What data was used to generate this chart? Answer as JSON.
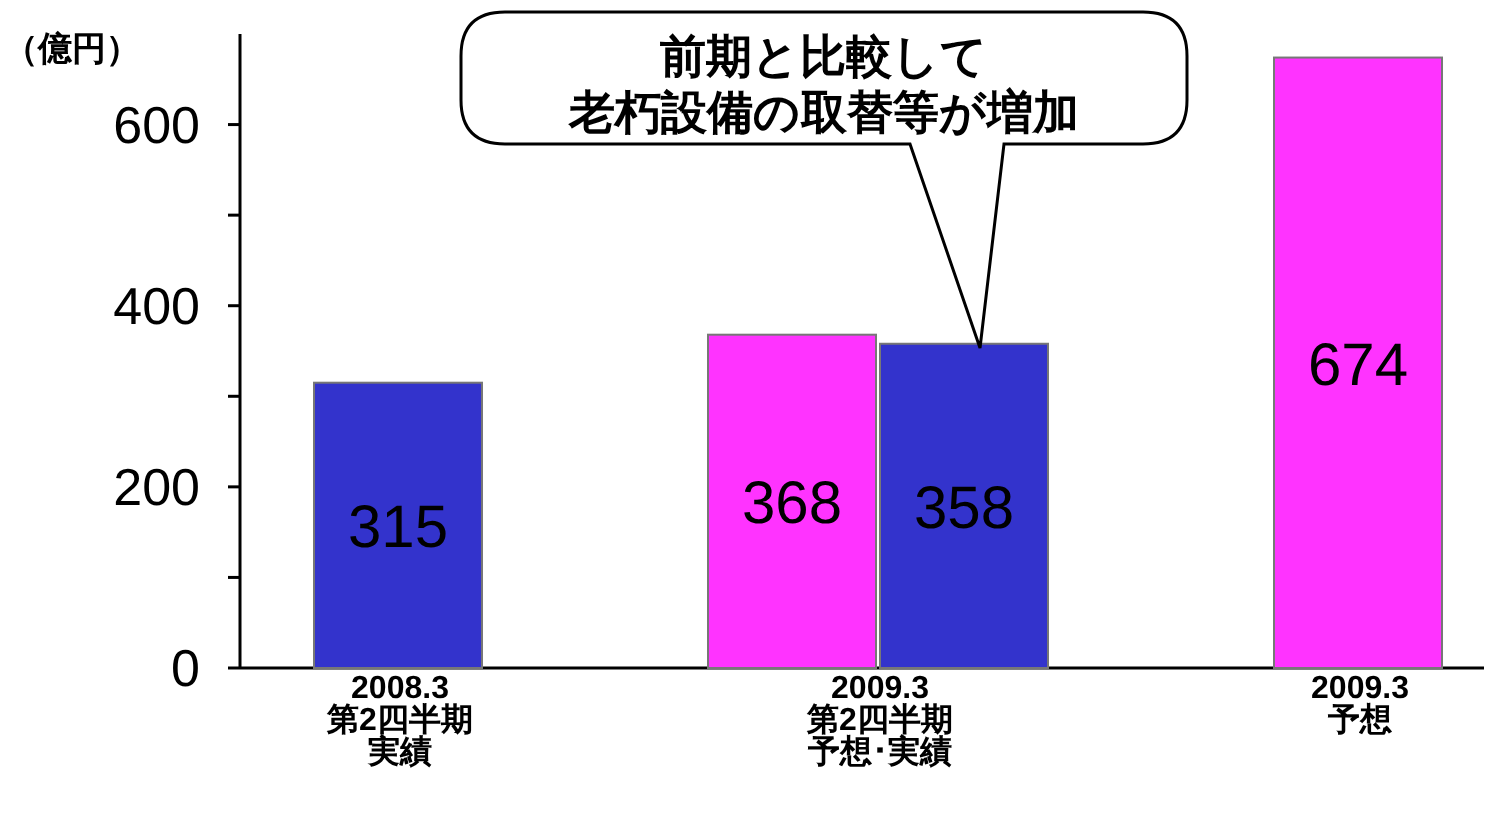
{
  "chart_data": {
    "type": "bar",
    "ylabel": "（億円）",
    "categories": [
      "2008.3\n第2四半期実績",
      "2009.3\n第2四半期予想･実績",
      "2009.3\n予想"
    ],
    "series": [
      {
        "color": "#ff33ff",
        "values": [
          null,
          368,
          674
        ]
      },
      {
        "color": "#3333cc",
        "values": [
          315,
          358,
          null
        ]
      }
    ],
    "ylim": [
      0,
      700
    ],
    "yticks": [
      0,
      {
        "value": 100,
        "label": null
      },
      200,
      {
        "value": 300,
        "label": null
      },
      400,
      {
        "value": 500,
        "label": null
      },
      600
    ],
    "data_labels": true,
    "annotations": [
      "前期と比較して",
      "老朽設備の取替等が増加"
    ]
  }
}
